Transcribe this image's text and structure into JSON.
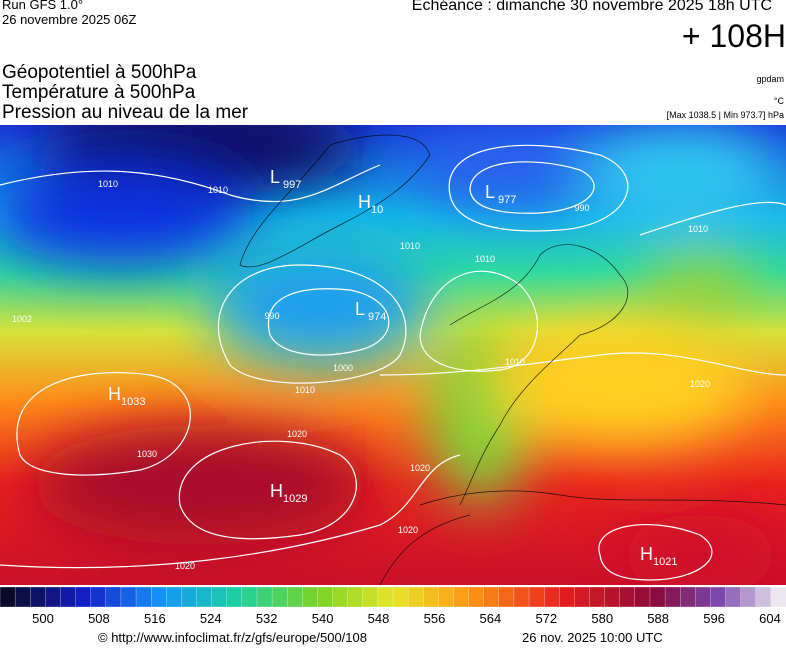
{
  "header": {
    "run": "Run GFS 1.0°",
    "date": "26 novembre 2025 06Z",
    "echeance": "Echéance : dimanche 30 novembre 2025 18h UTC",
    "lead": "+ 108H"
  },
  "layers": [
    "Géopotentiel à 500hPa",
    "Température à 500hPa",
    "Pression au niveau de la mer"
  ],
  "units": [
    "gpdam",
    "°C",
    "[Max 1038.5 | Min 973.7] hPa"
  ],
  "centers": [
    {
      "letter": "L",
      "value": "997"
    },
    {
      "letter": "H",
      "value": "10"
    },
    {
      "letter": "L",
      "value": "977"
    },
    {
      "letter": "L",
      "value": "974"
    },
    {
      "letter": "H",
      "value": "1033"
    },
    {
      "letter": "H",
      "value": "1029"
    },
    {
      "letter": "H",
      "value": "1021"
    }
  ],
  "isobar_labels": [
    "1010",
    "1010",
    "990",
    "990",
    "1010",
    "1010",
    "1000",
    "1010",
    "1020",
    "1030",
    "1020",
    "1020",
    "1020",
    "1010",
    "1020",
    "1010",
    "1002"
  ],
  "colorbar": {
    "ticks": [
      500,
      508,
      516,
      524,
      532,
      540,
      548,
      556,
      564,
      572,
      580,
      588,
      596,
      604
    ]
  },
  "footer": {
    "source": "© http://www.infoclimat.fr/z/gfs/europe/500/108",
    "issued": "26 nov. 2025 10:00 UTC"
  }
}
